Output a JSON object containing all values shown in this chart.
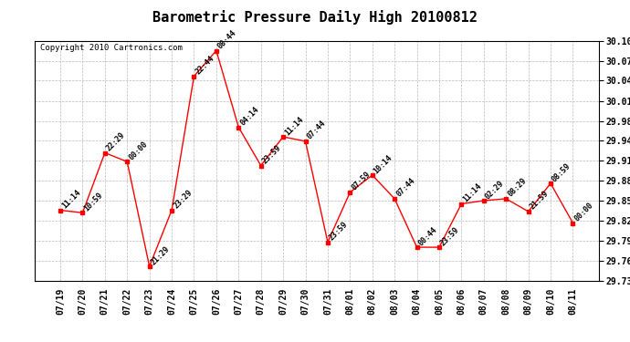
{
  "title": "Barometric Pressure Daily High 20100812",
  "copyright": "Copyright 2010 Cartronics.com",
  "x_labels": [
    "07/19",
    "07/20",
    "07/21",
    "07/22",
    "07/23",
    "07/24",
    "07/25",
    "07/26",
    "07/27",
    "07/28",
    "07/29",
    "07/30",
    "07/31",
    "08/01",
    "08/02",
    "08/03",
    "08/04",
    "08/05",
    "08/06",
    "08/07",
    "08/08",
    "08/09",
    "08/10",
    "08/11"
  ],
  "y_values": [
    29.84,
    29.836,
    29.93,
    29.916,
    29.752,
    29.84,
    30.05,
    30.09,
    29.97,
    29.91,
    29.955,
    29.948,
    29.79,
    29.868,
    29.895,
    29.858,
    29.782,
    29.782,
    29.85,
    29.855,
    29.858,
    29.838,
    29.882,
    29.82
  ],
  "time_labels": [
    "11:14",
    "10:59",
    "22:29",
    "00:00",
    "21:29",
    "23:29",
    "22:44",
    "08:44",
    "04:14",
    "23:59",
    "11:14",
    "07:44",
    "23:59",
    "07:59",
    "10:14",
    "07:44",
    "00:44",
    "23:59",
    "11:14",
    "02:29",
    "08:29",
    "21:59",
    "08:59",
    "00:00"
  ],
  "ylim_min": 29.73,
  "ylim_max": 30.105,
  "y_ticks": [
    29.73,
    29.761,
    29.792,
    29.824,
    29.855,
    29.886,
    29.918,
    29.949,
    29.98,
    30.011,
    30.043,
    30.074,
    30.105
  ],
  "line_color": "red",
  "marker_color": "red",
  "bg_color": "white",
  "grid_color": "#bbbbbb",
  "title_fontsize": 11,
  "copyright_fontsize": 6.5,
  "label_fontsize": 6,
  "tick_fontsize": 7,
  "fig_width": 6.9,
  "fig_height": 3.75,
  "dpi": 100
}
